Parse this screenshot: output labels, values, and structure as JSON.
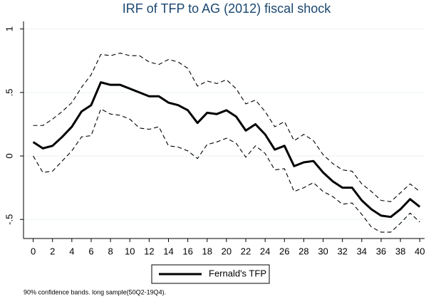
{
  "chart_data": {
    "type": "line",
    "title": "IRF of TFP to AG (2012) fiscal shock",
    "note": "90% confidence bands. long sample(50Q2-19Q4).",
    "x": [
      0,
      1,
      2,
      3,
      4,
      5,
      6,
      7,
      8,
      9,
      10,
      11,
      12,
      13,
      14,
      15,
      16,
      17,
      18,
      19,
      20,
      21,
      22,
      23,
      24,
      25,
      26,
      27,
      28,
      29,
      30,
      31,
      32,
      33,
      34,
      35,
      36,
      37,
      38,
      39,
      40
    ],
    "series": [
      {
        "name": "Fernald's TFP",
        "color": "#000000",
        "style": "solid",
        "values": [
          0.11,
          0.06,
          0.08,
          0.15,
          0.23,
          0.35,
          0.4,
          0.58,
          0.56,
          0.56,
          0.53,
          0.5,
          0.47,
          0.47,
          0.42,
          0.4,
          0.36,
          0.26,
          0.34,
          0.33,
          0.36,
          0.31,
          0.2,
          0.25,
          0.17,
          0.05,
          0.08,
          -0.08,
          -0.05,
          -0.04,
          -0.13,
          -0.2,
          -0.25,
          -0.25,
          -0.35,
          -0.42,
          -0.47,
          -0.48,
          -0.42,
          -0.34,
          -0.4
        ]
      },
      {
        "color": "#000000",
        "style": "dashed",
        "values": [
          0.24,
          0.24,
          0.29,
          0.35,
          0.42,
          0.54,
          0.64,
          0.8,
          0.79,
          0.81,
          0.79,
          0.79,
          0.74,
          0.72,
          0.76,
          0.74,
          0.69,
          0.55,
          0.59,
          0.57,
          0.6,
          0.53,
          0.41,
          0.44,
          0.35,
          0.23,
          0.27,
          0.12,
          0.17,
          0.12,
          0.01,
          -0.06,
          -0.11,
          -0.12,
          -0.22,
          -0.28,
          -0.35,
          -0.36,
          -0.29,
          -0.22,
          -0.28
        ]
      },
      {
        "color": "#000000",
        "style": "dashed",
        "values": [
          0.0,
          -0.13,
          -0.12,
          -0.04,
          0.04,
          0.15,
          0.16,
          0.37,
          0.33,
          0.32,
          0.29,
          0.22,
          0.21,
          0.23,
          0.08,
          0.07,
          0.04,
          -0.02,
          0.09,
          0.11,
          0.14,
          0.1,
          -0.01,
          0.08,
          0.02,
          -0.11,
          -0.1,
          -0.28,
          -0.25,
          -0.21,
          -0.28,
          -0.32,
          -0.38,
          -0.37,
          -0.46,
          -0.56,
          -0.6,
          -0.6,
          -0.53,
          -0.45,
          -0.52
        ]
      }
    ],
    "xlim": [
      -1,
      40.5
    ],
    "xticks": [
      0,
      2,
      4,
      6,
      8,
      10,
      12,
      14,
      16,
      18,
      20,
      22,
      24,
      26,
      28,
      30,
      32,
      34,
      36,
      38,
      40
    ],
    "ylim": [
      -0.65,
      1.06
    ],
    "yticks": [
      {
        "value": -0.5,
        "label": "-.5"
      },
      0,
      {
        "value": 0.5,
        "label": ".5"
      },
      1
    ],
    "grid": true,
    "legend": "bottom"
  }
}
